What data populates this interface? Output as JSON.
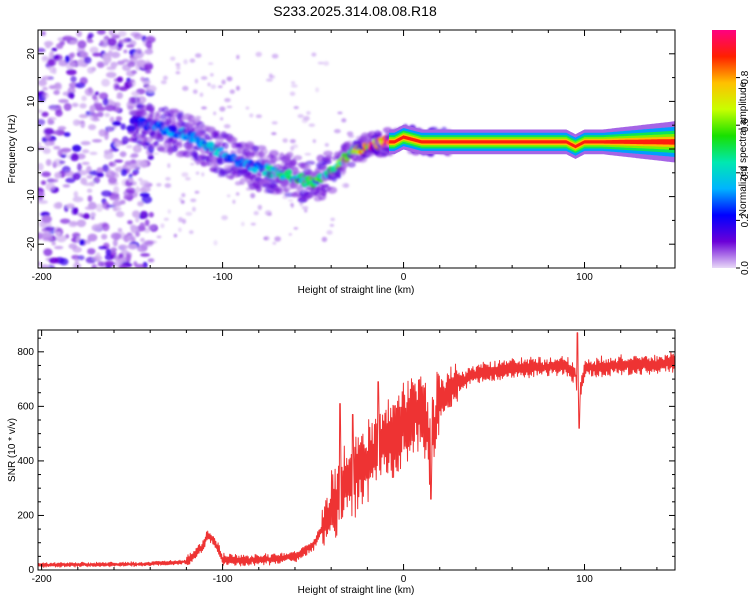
{
  "title": "S233.2025.314.08.08.R18",
  "chart_data": [
    {
      "type": "heatmap",
      "name": "spectrogram",
      "xlabel": "Height of straight line (km)",
      "ylabel": "Frequency (Hz)",
      "xlim": [
        -202,
        150
      ],
      "ylim": [
        -25,
        25
      ],
      "xticks": [
        -200,
        -100,
        0,
        100
      ],
      "xtick_labels": [
        "-200",
        "-100",
        "0",
        "100"
      ],
      "yticks": [
        -20,
        -10,
        0,
        10,
        20
      ],
      "ytick_labels": [
        "-20",
        "-10",
        "0",
        "10",
        "20"
      ],
      "colorbar": {
        "label": "Normalized spectral amplitude",
        "range": [
          0,
          1
        ],
        "ticks": [
          0.0,
          0.2,
          0.4,
          0.6,
          0.8
        ],
        "tick_labels": [
          "0.0",
          "0.2",
          "0.4",
          "0.6",
          "0.8"
        ],
        "colormap": [
          "#e8d9f7",
          "#6b00d8",
          "#0000ff",
          "#00b4ff",
          "#00e8b0",
          "#18e000",
          "#c8ff00",
          "#ffc000",
          "#ff2000",
          "#ff0080"
        ]
      },
      "ridge": {
        "x": [
          -150,
          -140,
          -130,
          -120,
          -110,
          -100,
          -90,
          -80,
          -70,
          -60,
          -50,
          -40,
          -35,
          -30,
          -25,
          -20,
          -15,
          -10,
          -5,
          0,
          5,
          10,
          20,
          30,
          60,
          90,
          95,
          100,
          120,
          150
        ],
        "freq": [
          6,
          5,
          4,
          3,
          1,
          -1,
          -3,
          -4,
          -5,
          -6,
          -7,
          -5,
          -3,
          -1,
          0,
          0.5,
          1,
          1.5,
          1.5,
          2.5,
          2,
          1.5,
          1.5,
          1.5,
          1.5,
          1.5,
          0.5,
          1.5,
          1.5,
          1.5
        ],
        "amplitude": [
          0.2,
          0.25,
          0.3,
          0.3,
          0.35,
          0.35,
          0.3,
          0.35,
          0.45,
          0.45,
          0.55,
          0.5,
          0.55,
          0.6,
          0.7,
          0.8,
          0.85,
          0.9,
          0.9,
          0.9,
          0.95,
          0.95,
          0.95,
          0.95,
          0.95,
          0.95,
          0.85,
          0.95,
          0.95,
          0.95
        ]
      },
      "noise_region": [
        -202,
        -138
      ]
    },
    {
      "type": "line",
      "name": "snr",
      "xlabel": "Height of straight line (km)",
      "ylabel": "SNR (10 * v/v)",
      "xlim": [
        -202,
        150
      ],
      "ylim": [
        0,
        880
      ],
      "xticks": [
        -200,
        -100,
        0,
        100
      ],
      "xtick_labels": [
        "-200",
        "-100",
        "0",
        "100"
      ],
      "yticks": [
        0,
        200,
        400,
        600,
        800
      ],
      "ytick_labels": [
        "0",
        "200",
        "400",
        "600",
        "800"
      ],
      "color": "#ee3333",
      "trend": {
        "x": [
          -202,
          -170,
          -140,
          -120,
          -112,
          -108,
          -104,
          -100,
          -90,
          -70,
          -60,
          -50,
          -45,
          -40,
          -35,
          -30,
          -25,
          -20,
          -15,
          -10,
          -5,
          0,
          5,
          10,
          12,
          15,
          18,
          20,
          25,
          30,
          40,
          60,
          80,
          90,
          95,
          97,
          100,
          120,
          150
        ],
        "y": [
          18,
          20,
          22,
          30,
          80,
          130,
          100,
          40,
          35,
          40,
          50,
          90,
          150,
          220,
          280,
          330,
          360,
          400,
          440,
          480,
          500,
          550,
          580,
          600,
          560,
          450,
          560,
          620,
          660,
          690,
          720,
          740,
          745,
          750,
          720,
          620,
          740,
          750,
          760
        ]
      },
      "noise_amplitude": 35,
      "spikes": [
        {
          "x": -35,
          "y": 610
        },
        {
          "x": -28,
          "y": 570
        },
        {
          "x": -14,
          "y": 690
        },
        {
          "x": 15,
          "y": 260
        },
        {
          "x": 96,
          "y": 870
        },
        {
          "x": 97,
          "y": 520
        }
      ]
    }
  ]
}
